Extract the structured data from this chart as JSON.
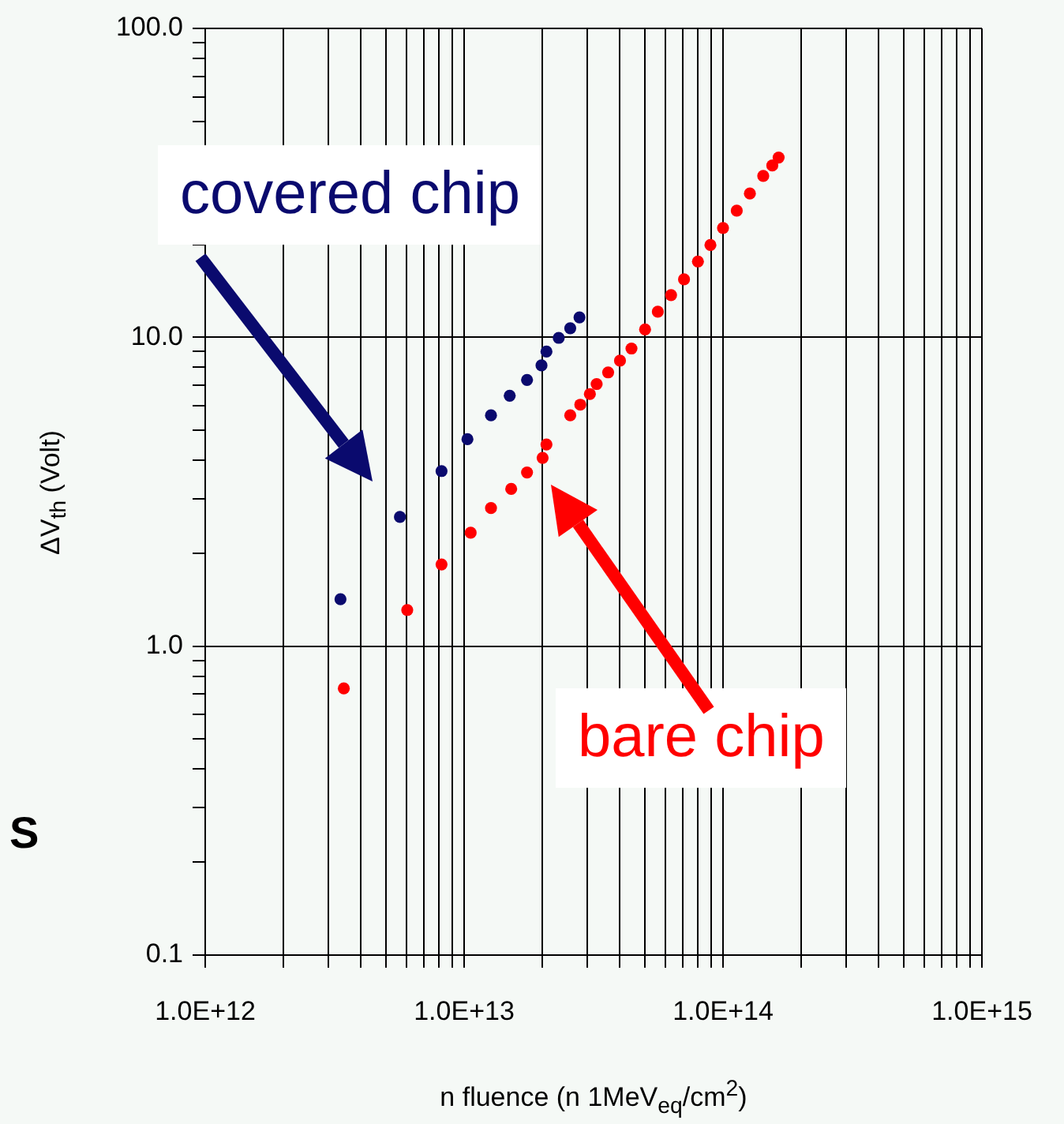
{
  "chart_data": {
    "type": "scatter",
    "xlabel": "n fluence (n 1MeV$_{eq}$/cm$^{2}$)",
    "ylabel": "ΔV$_{th}$ (Volt)",
    "log": "xy",
    "xlim": [
      1000000000000.0,
      1000000000000000.0
    ],
    "ylim": [
      0.1,
      100
    ],
    "xticks": [
      {
        "value": 1000000000000.0,
        "label": "1.0E+12"
      },
      {
        "value": 2000000000000.0,
        "label": null
      },
      {
        "value": 3000000000000.0,
        "label": null
      },
      {
        "value": 4000000000000.0,
        "label": null
      },
      {
        "value": 5000000000000.0,
        "label": null
      },
      {
        "value": 6000000000000.0,
        "label": null
      },
      {
        "value": 7000000000000.0,
        "label": null
      },
      {
        "value": 8000000000000.0,
        "label": null
      },
      {
        "value": 9000000000000.0,
        "label": null
      },
      {
        "value": 10000000000000.0,
        "label": "1.0E+13"
      },
      {
        "value": 20000000000000.0,
        "label": null
      },
      {
        "value": 30000000000000.0,
        "label": null
      },
      {
        "value": 40000000000000.0,
        "label": null
      },
      {
        "value": 50000000000000.0,
        "label": null
      },
      {
        "value": 60000000000000.0,
        "label": null
      },
      {
        "value": 70000000000000.0,
        "label": null
      },
      {
        "value": 80000000000000.0,
        "label": null
      },
      {
        "value": 90000000000000.0,
        "label": null
      },
      {
        "value": 100000000000000.0,
        "label": "1.0E+14"
      },
      {
        "value": 200000000000000.0,
        "label": null
      },
      {
        "value": 300000000000000.0,
        "label": null
      },
      {
        "value": 400000000000000.0,
        "label": null
      },
      {
        "value": 500000000000000.0,
        "label": null
      },
      {
        "value": 600000000000000.0,
        "label": null
      },
      {
        "value": 700000000000000.0,
        "label": null
      },
      {
        "value": 800000000000000.0,
        "label": null
      },
      {
        "value": 900000000000000.0,
        "label": null
      },
      {
        "value": 1000000000000000.0,
        "label": "1.0E+15"
      }
    ],
    "yticks": [
      {
        "value": 0.1,
        "label": "0.1"
      },
      {
        "value": 0.2,
        "label": null
      },
      {
        "value": 0.3,
        "label": null
      },
      {
        "value": 0.4,
        "label": null
      },
      {
        "value": 0.5,
        "label": null
      },
      {
        "value": 0.6,
        "label": null
      },
      {
        "value": 0.7,
        "label": null
      },
      {
        "value": 0.8,
        "label": null
      },
      {
        "value": 0.9,
        "label": null
      },
      {
        "value": 1,
        "label": "1.0"
      },
      {
        "value": 2,
        "label": null
      },
      {
        "value": 3,
        "label": null
      },
      {
        "value": 4,
        "label": null
      },
      {
        "value": 5,
        "label": null
      },
      {
        "value": 6,
        "label": null
      },
      {
        "value": 7,
        "label": null
      },
      {
        "value": 8,
        "label": null
      },
      {
        "value": 9,
        "label": null
      },
      {
        "value": 10,
        "label": "10.0"
      },
      {
        "value": 20,
        "label": null
      },
      {
        "value": 30,
        "label": null
      },
      {
        "value": 40,
        "label": null
      },
      {
        "value": 50,
        "label": null
      },
      {
        "value": 60,
        "label": null
      },
      {
        "value": 70,
        "label": null
      },
      {
        "value": 80,
        "label": null
      },
      {
        "value": 90,
        "label": null
      },
      {
        "value": 100,
        "label": "100.0"
      }
    ],
    "grid": true,
    "legend": false,
    "marker": "circle",
    "series": [
      {
        "name": "covered chip",
        "color": "#0a0a6e",
        "x": [
          3330000000000.0,
          5650000000000.0,
          8180000000000.0,
          10300000000000.0,
          12700000000000.0,
          15000000000000.0,
          17500000000000.0,
          19900000000000.0,
          20800000000000.0,
          23200000000000.0,
          25700000000000.0,
          27900000000000.0
        ],
        "values": [
          1.42,
          2.62,
          3.69,
          4.68,
          5.59,
          6.47,
          7.28,
          8.11,
          8.99,
          9.96,
          10.7,
          11.6
        ]
      },
      {
        "name": "bare chip",
        "color": "#ff0000",
        "x": [
          3430000000000.0,
          6030000000000.0,
          8180000000000.0,
          10600000000000.0,
          12700000000000.0,
          15200000000000.0,
          17500000000000.0,
          20100000000000.0,
          20800000000000.0,
          25700000000000.0,
          28100000000000.0,
          30600000000000.0,
          32500000000000.0,
          36000000000000.0,
          40000000000000.0,
          44300000000000.0,
          50000000000000.0,
          56000000000000.0,
          63000000000000.0,
          70700000000000.0,
          80000000000000.0,
          89400000000000.0,
          100000000000000.0,
          113000000000000.0,
          127000000000000.0,
          143000000000000.0,
          155000000000000.0,
          164000000000000.0
        ],
        "values": [
          0.73,
          1.31,
          1.84,
          2.33,
          2.8,
          3.23,
          3.65,
          4.07,
          4.5,
          5.59,
          6.05,
          6.55,
          7.06,
          7.7,
          8.4,
          9.2,
          10.6,
          12.1,
          13.7,
          15.4,
          17.6,
          19.9,
          22.6,
          25.7,
          29.2,
          33.3,
          36,
          38.2
        ]
      }
    ],
    "annotations": [
      "S"
    ]
  }
}
